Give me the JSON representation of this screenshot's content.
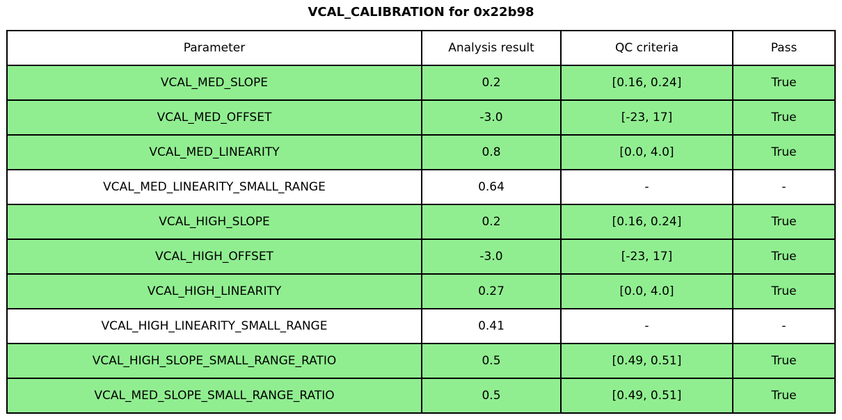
{
  "title": "VCAL_CALIBRATION for 0x22b98",
  "colors": {
    "pass_green": "#90EE90",
    "neutral_white": "#FFFFFF",
    "border": "#000000"
  },
  "chart_data": {
    "type": "table",
    "title": "VCAL_CALIBRATION for 0x22b98",
    "columns": [
      "Parameter",
      "Analysis result",
      "QC criteria",
      "Pass"
    ],
    "rows": [
      {
        "cells": [
          "VCAL_MED_SLOPE",
          "0.2",
          "[0.16, 0.24]",
          "True"
        ],
        "highlight": true
      },
      {
        "cells": [
          "VCAL_MED_OFFSET",
          "-3.0",
          "[-23, 17]",
          "True"
        ],
        "highlight": true
      },
      {
        "cells": [
          "VCAL_MED_LINEARITY",
          "0.8",
          "[0.0, 4.0]",
          "True"
        ],
        "highlight": true
      },
      {
        "cells": [
          "VCAL_MED_LINEARITY_SMALL_RANGE",
          "0.64",
          "-",
          "-"
        ],
        "highlight": false
      },
      {
        "cells": [
          "VCAL_HIGH_SLOPE",
          "0.2",
          "[0.16, 0.24]",
          "True"
        ],
        "highlight": true
      },
      {
        "cells": [
          "VCAL_HIGH_OFFSET",
          "-3.0",
          "[-23, 17]",
          "True"
        ],
        "highlight": true
      },
      {
        "cells": [
          "VCAL_HIGH_LINEARITY",
          "0.27",
          "[0.0, 4.0]",
          "True"
        ],
        "highlight": true
      },
      {
        "cells": [
          "VCAL_HIGH_LINEARITY_SMALL_RANGE",
          "0.41",
          "-",
          "-"
        ],
        "highlight": false
      },
      {
        "cells": [
          "VCAL_HIGH_SLOPE_SMALL_RANGE_RATIO",
          "0.5",
          "[0.49, 0.51]",
          "True"
        ],
        "highlight": true
      },
      {
        "cells": [
          "VCAL_MED_SLOPE_SMALL_RANGE_RATIO",
          "0.5",
          "[0.49, 0.51]",
          "True"
        ],
        "highlight": true
      }
    ]
  }
}
